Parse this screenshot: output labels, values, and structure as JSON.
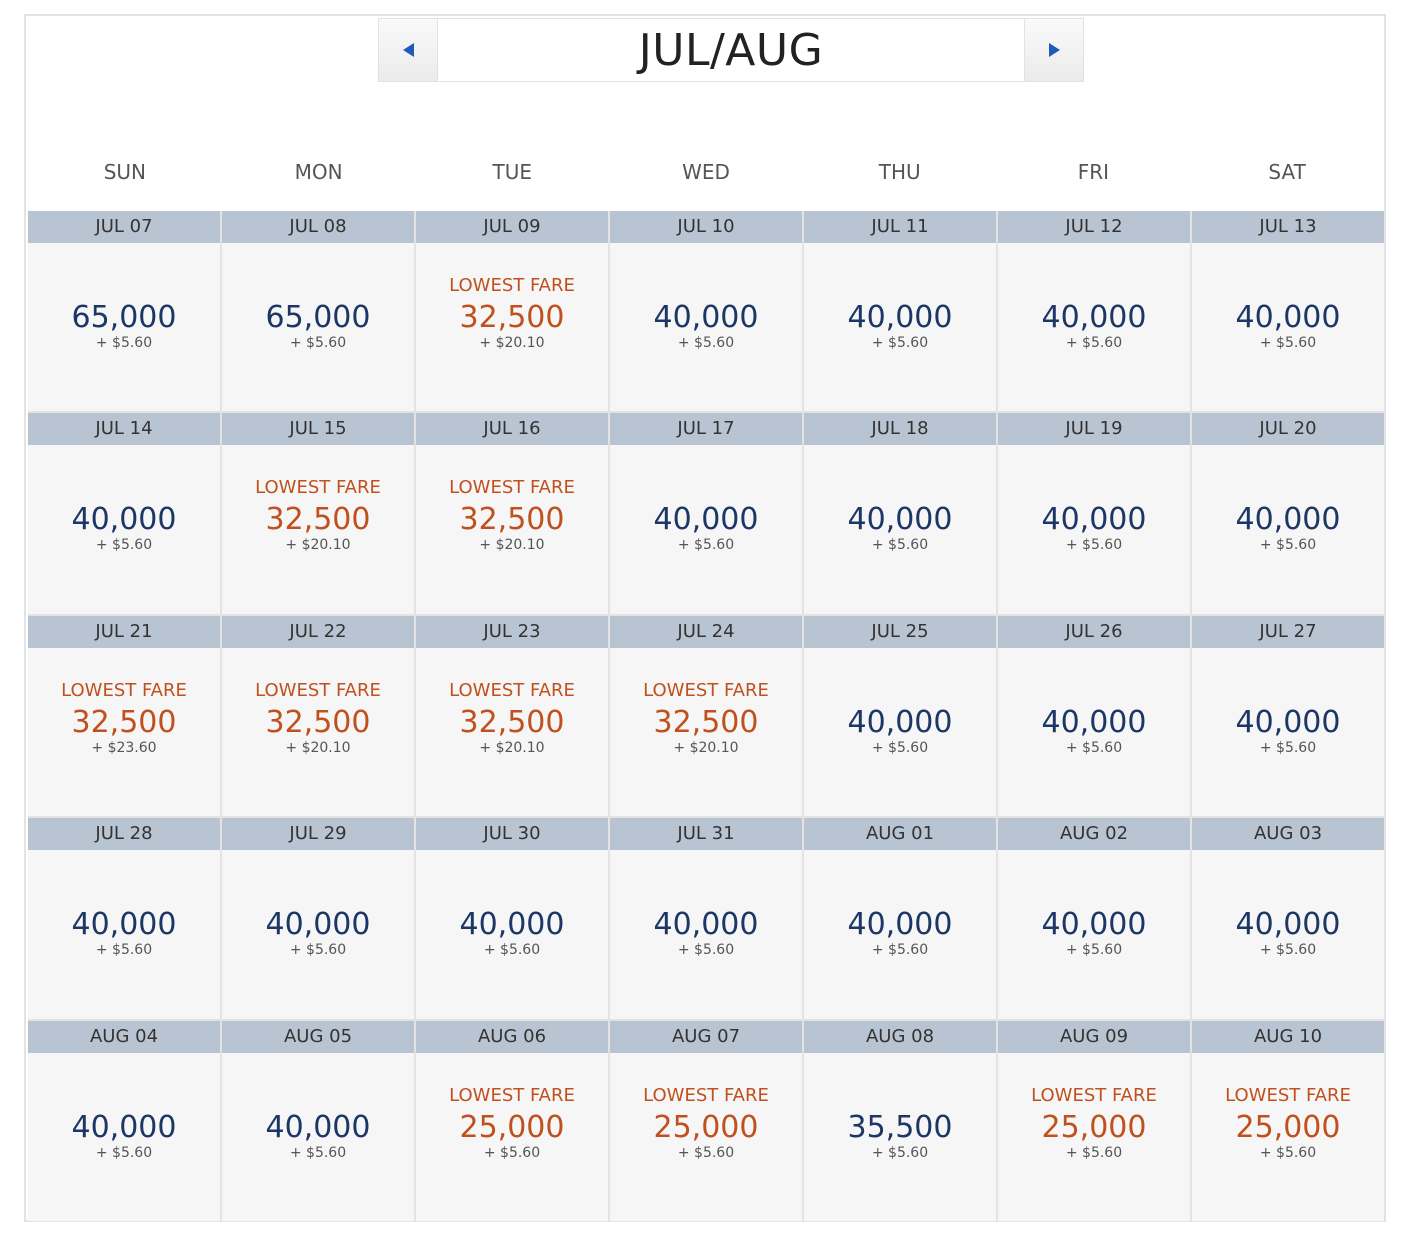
{
  "month_label": "JUL/AUG",
  "colors": {
    "accent": "#1d5bb8",
    "lowest": "#c0511e",
    "regular": "#1c3766",
    "date_bar": "#b8c4d1"
  },
  "weekdays": [
    "SUN",
    "MON",
    "TUE",
    "WED",
    "THU",
    "FRI",
    "SAT"
  ],
  "lowest_label": "LOWEST FARE",
  "days": [
    {
      "date": "JUL 07",
      "miles": "65,000",
      "fee": "+ $5.60",
      "lowest": false
    },
    {
      "date": "JUL 08",
      "miles": "65,000",
      "fee": "+ $5.60",
      "lowest": false
    },
    {
      "date": "JUL 09",
      "miles": "32,500",
      "fee": "+ $20.10",
      "lowest": true
    },
    {
      "date": "JUL 10",
      "miles": "40,000",
      "fee": "+ $5.60",
      "lowest": false
    },
    {
      "date": "JUL 11",
      "miles": "40,000",
      "fee": "+ $5.60",
      "lowest": false
    },
    {
      "date": "JUL 12",
      "miles": "40,000",
      "fee": "+ $5.60",
      "lowest": false
    },
    {
      "date": "JUL 13",
      "miles": "40,000",
      "fee": "+ $5.60",
      "lowest": false
    },
    {
      "date": "JUL 14",
      "miles": "40,000",
      "fee": "+ $5.60",
      "lowest": false
    },
    {
      "date": "JUL 15",
      "miles": "32,500",
      "fee": "+ $20.10",
      "lowest": true
    },
    {
      "date": "JUL 16",
      "miles": "32,500",
      "fee": "+ $20.10",
      "lowest": true
    },
    {
      "date": "JUL 17",
      "miles": "40,000",
      "fee": "+ $5.60",
      "lowest": false
    },
    {
      "date": "JUL 18",
      "miles": "40,000",
      "fee": "+ $5.60",
      "lowest": false
    },
    {
      "date": "JUL 19",
      "miles": "40,000",
      "fee": "+ $5.60",
      "lowest": false
    },
    {
      "date": "JUL 20",
      "miles": "40,000",
      "fee": "+ $5.60",
      "lowest": false
    },
    {
      "date": "JUL 21",
      "miles": "32,500",
      "fee": "+ $23.60",
      "lowest": true
    },
    {
      "date": "JUL 22",
      "miles": "32,500",
      "fee": "+ $20.10",
      "lowest": true
    },
    {
      "date": "JUL 23",
      "miles": "32,500",
      "fee": "+ $20.10",
      "lowest": true
    },
    {
      "date": "JUL 24",
      "miles": "32,500",
      "fee": "+ $20.10",
      "lowest": true
    },
    {
      "date": "JUL 25",
      "miles": "40,000",
      "fee": "+ $5.60",
      "lowest": false
    },
    {
      "date": "JUL 26",
      "miles": "40,000",
      "fee": "+ $5.60",
      "lowest": false
    },
    {
      "date": "JUL 27",
      "miles": "40,000",
      "fee": "+ $5.60",
      "lowest": false
    },
    {
      "date": "JUL 28",
      "miles": "40,000",
      "fee": "+ $5.60",
      "lowest": false
    },
    {
      "date": "JUL 29",
      "miles": "40,000",
      "fee": "+ $5.60",
      "lowest": false
    },
    {
      "date": "JUL 30",
      "miles": "40,000",
      "fee": "+ $5.60",
      "lowest": false
    },
    {
      "date": "JUL 31",
      "miles": "40,000",
      "fee": "+ $5.60",
      "lowest": false
    },
    {
      "date": "AUG 01",
      "miles": "40,000",
      "fee": "+ $5.60",
      "lowest": false
    },
    {
      "date": "AUG 02",
      "miles": "40,000",
      "fee": "+ $5.60",
      "lowest": false
    },
    {
      "date": "AUG 03",
      "miles": "40,000",
      "fee": "+ $5.60",
      "lowest": false
    },
    {
      "date": "AUG 04",
      "miles": "40,000",
      "fee": "+ $5.60",
      "lowest": false
    },
    {
      "date": "AUG 05",
      "miles": "40,000",
      "fee": "+ $5.60",
      "lowest": false
    },
    {
      "date": "AUG 06",
      "miles": "25,000",
      "fee": "+ $5.60",
      "lowest": true
    },
    {
      "date": "AUG 07",
      "miles": "25,000",
      "fee": "+ $5.60",
      "lowest": true
    },
    {
      "date": "AUG 08",
      "miles": "35,500",
      "fee": "+ $5.60",
      "lowest": false
    },
    {
      "date": "AUG 09",
      "miles": "25,000",
      "fee": "+ $5.60",
      "lowest": true
    },
    {
      "date": "AUG 10",
      "miles": "25,000",
      "fee": "+ $5.60",
      "lowest": true
    }
  ]
}
